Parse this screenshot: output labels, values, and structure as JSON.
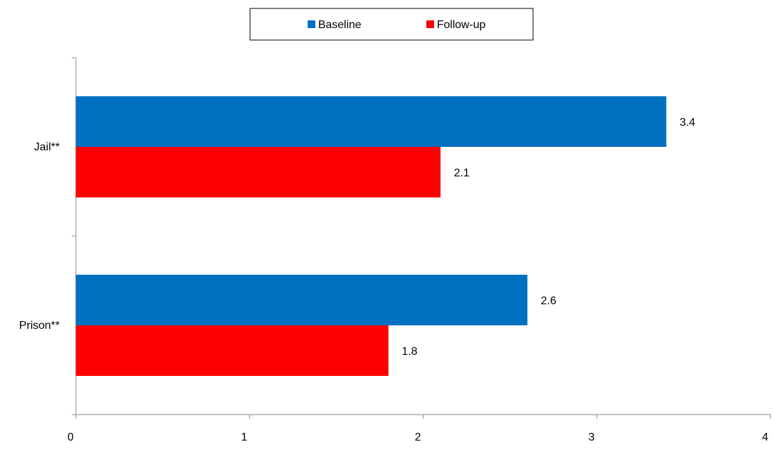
{
  "chart_data": {
    "type": "bar",
    "orientation": "horizontal",
    "title": "",
    "xlabel": "",
    "ylabel": "",
    "categories": [
      "Jail**",
      "Prison**"
    ],
    "series": [
      {
        "name": "Baseline",
        "color": "#0070C0",
        "values": [
          3.4,
          2.6
        ]
      },
      {
        "name": "Follow-up",
        "color": "#FF0000",
        "values": [
          2.1,
          1.8
        ]
      }
    ],
    "xlim": [
      0,
      4
    ],
    "xticks": [
      "0",
      "1",
      "2",
      "3",
      "4"
    ],
    "data_labels": [
      [
        "3.4",
        "2.6"
      ],
      [
        "2.1",
        "1.8"
      ]
    ],
    "grid": false,
    "legend_position": "top-center"
  }
}
